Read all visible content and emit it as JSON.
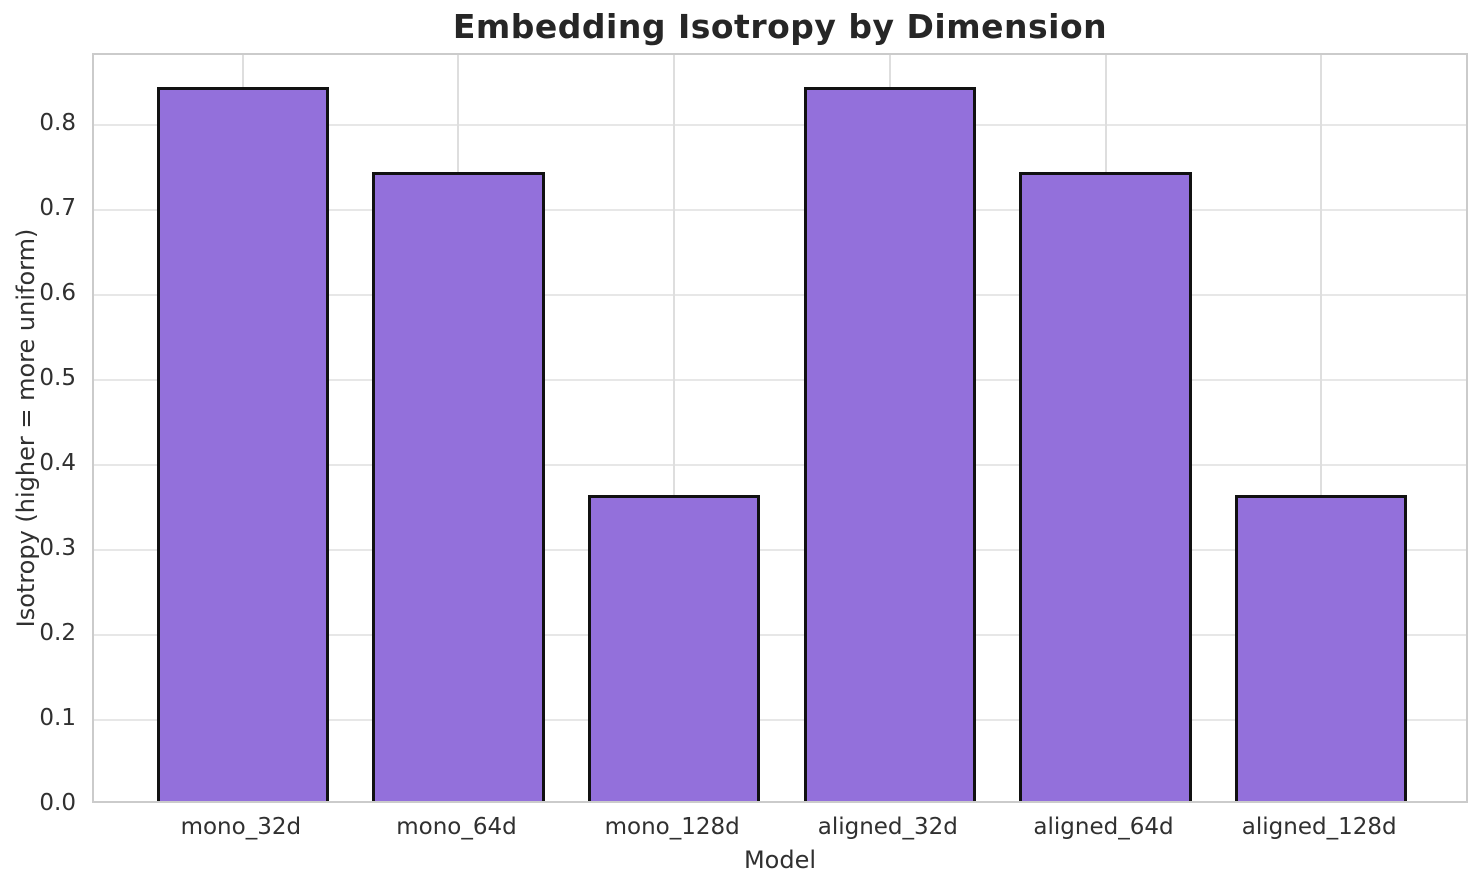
{
  "chart_data": {
    "type": "bar",
    "title": "Embedding Isotropy by Dimension",
    "xlabel": "Model",
    "ylabel": "Isotropy (higher = more uniform)",
    "categories": [
      "mono_32d",
      "mono_64d",
      "mono_128d",
      "aligned_32d",
      "aligned_64d",
      "aligned_128d"
    ],
    "values": [
      0.84,
      0.74,
      0.36,
      0.84,
      0.74,
      0.36
    ],
    "ylim": [
      0,
      0.882
    ],
    "yticks": [
      0.0,
      0.1,
      0.2,
      0.3,
      0.4,
      0.5,
      0.6,
      0.7,
      0.8
    ],
    "ytick_labels": [
      "0.0",
      "0.1",
      "0.2",
      "0.3",
      "0.4",
      "0.5",
      "0.6",
      "0.7",
      "0.8"
    ],
    "grid": true,
    "legend": "none",
    "colors": {
      "bar_fill": "#9370db",
      "bar_edge": "#111111",
      "grid": "#e2e2e2",
      "spine": "#cbcbcb",
      "title_text": "#262626",
      "axis_text": "#303030"
    }
  }
}
